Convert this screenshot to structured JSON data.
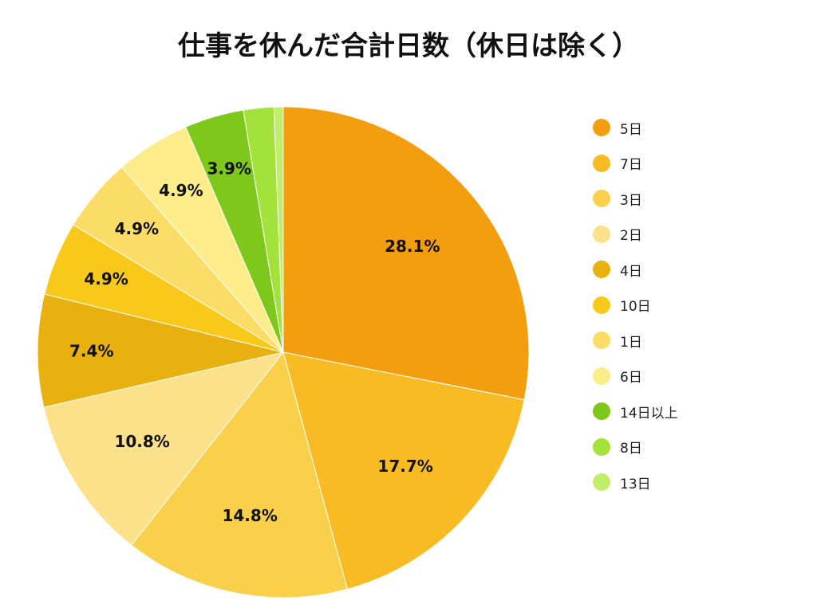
{
  "chart_data": {
    "type": "pie",
    "title": "仕事を休んだ合計日数（休日は除く）",
    "categories": [
      "5日",
      "7日",
      "3日",
      "2日",
      "4日",
      "10日",
      "1日",
      "6日",
      "14日以上",
      "8日",
      "13日"
    ],
    "values": [
      28.1,
      17.7,
      14.8,
      10.8,
      7.4,
      4.9,
      4.9,
      4.9,
      3.9,
      2.0,
      0.6
    ],
    "labels_shown": [
      "28.1%",
      "17.7%",
      "14.8%",
      "10.8%",
      "7.4%",
      "4.9%",
      "4.9%",
      "4.9%",
      "3.9%",
      "",
      ""
    ],
    "colors": [
      "#f29e0e",
      "#f9bb23",
      "#fad04a",
      "#fbe18a",
      "#e8b110",
      "#f8c81a",
      "#fbdc67",
      "#fdec8a",
      "#7ec81c",
      "#a2e23b",
      "#c1ee6a"
    ],
    "legend_position": "right",
    "start_angle": "12 o'clock, clockwise",
    "unit": "%"
  }
}
